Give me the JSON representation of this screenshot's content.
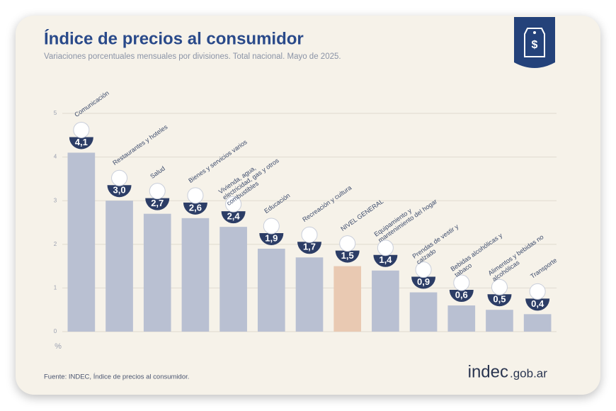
{
  "chart_data": {
    "type": "bar",
    "title": "Índice de precios al consumidor",
    "subtitle": "Variaciones porcentuales mensuales por divisiones. Total nacional. Mayo de 2025.",
    "categories": [
      "Comunicación",
      "Restaurantes y hoteles",
      "Salud",
      "Bienes y servicios varios",
      "Vivienda, agua, electricidad, gas y otros combustibles",
      "Educación",
      "Recreación y cultura",
      "NIVEL GENERAL",
      "Equipamiento y mantenimiento del hogar",
      "Prendas de vestir y calzado",
      "Bebidas alcohólicas y tabaco",
      "Alimentos y bebidas no alcohólicas",
      "Transporte"
    ],
    "values": [
      4.1,
      3.0,
      2.7,
      2.6,
      2.4,
      1.9,
      1.7,
      1.5,
      1.4,
      0.9,
      0.6,
      0.5,
      0.4
    ],
    "value_labels": [
      "4,1",
      "3,0",
      "2,7",
      "2,6",
      "2,4",
      "1,9",
      "1,7",
      "1,5",
      "1,4",
      "0,9",
      "0,6",
      "0,5",
      "0,4"
    ],
    "colors": [
      "#b9c0d2",
      "#b9c0d2",
      "#b9c0d2",
      "#b9c0d2",
      "#b9c0d2",
      "#b9c0d2",
      "#b9c0d2",
      "#e9c9b2",
      "#b9c0d2",
      "#b9c0d2",
      "#b9c0d2",
      "#b9c0d2",
      "#b9c0d2"
    ],
    "ylim": [
      0,
      5
    ],
    "yticks": [
      0,
      1,
      2,
      3,
      4,
      5
    ],
    "grid": true,
    "y_unit": "%",
    "source": "Fuente: INDEC, Índice de precios al consumidor.",
    "brand": {
      "name": "indec",
      "domain": ".gob.ar"
    }
  }
}
